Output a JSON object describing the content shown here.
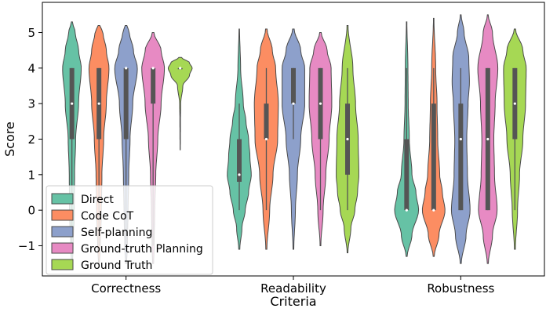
{
  "chart_data": {
    "type": "violin",
    "xlabel": "Criteria",
    "ylabel": "Score",
    "ylim": [
      -1.85,
      5.85
    ],
    "yticks": [
      -1,
      0,
      1,
      2,
      3,
      4,
      5
    ],
    "ytick_labels": [
      "−1",
      "0",
      "1",
      "2",
      "3",
      "4",
      "5"
    ],
    "grid": false,
    "legend_position": "lower-left",
    "categories": [
      "Correctness",
      "Readability",
      "Robustness"
    ],
    "series": [
      {
        "name": "Direct",
        "color": "#66c2a5"
      },
      {
        "name": "Code CoT",
        "color": "#fc8d62"
      },
      {
        "name": "Self-planning",
        "color": "#8da0cb"
      },
      {
        "name": "Ground-truth Planning",
        "color": "#e78ac3"
      },
      {
        "name": "Ground Truth",
        "color": "#a6d854"
      }
    ],
    "violins": [
      [
        {
          "range": [
            -1.5,
            5.3
          ],
          "q1": 2,
          "median": 3,
          "q3": 4,
          "wlo": -1,
          "whi": 4,
          "profile": [
            [
              -1.5,
              0.04
            ],
            [
              -1,
              0.1
            ],
            [
              0,
              0.18
            ],
            [
              1,
              0.2
            ],
            [
              2,
              0.28
            ],
            [
              3,
              0.5
            ],
            [
              4,
              0.7
            ],
            [
              4.5,
              0.5
            ],
            [
              5,
              0.25
            ],
            [
              5.3,
              0.04
            ]
          ]
        },
        {
          "range": [
            -1.5,
            5.2
          ],
          "q1": 2,
          "median": 3,
          "q3": 4,
          "wlo": -1,
          "whi": 4,
          "profile": [
            [
              -1.5,
              0.04
            ],
            [
              -1,
              0.1
            ],
            [
              0,
              0.18
            ],
            [
              1,
              0.22
            ],
            [
              2,
              0.35
            ],
            [
              3,
              0.55
            ],
            [
              4,
              0.75
            ],
            [
              4.5,
              0.55
            ],
            [
              5,
              0.3
            ],
            [
              5.2,
              0.06
            ]
          ]
        },
        {
          "range": [
            -1.5,
            5.2
          ],
          "q1": 2,
          "median": 4,
          "q3": 4,
          "wlo": -1,
          "whi": 4,
          "profile": [
            [
              -1.5,
              0.04
            ],
            [
              -1,
              0.1
            ],
            [
              0,
              0.15
            ],
            [
              1,
              0.2
            ],
            [
              2,
              0.3
            ],
            [
              3,
              0.5
            ],
            [
              4,
              0.85
            ],
            [
              4.5,
              0.55
            ],
            [
              5,
              0.25
            ],
            [
              5.2,
              0.06
            ]
          ]
        },
        {
          "range": [
            -1.5,
            5.0
          ],
          "q1": 3,
          "median": 4,
          "q3": 4,
          "wlo": -1,
          "whi": 4,
          "profile": [
            [
              -1.5,
              0.04
            ],
            [
              -1,
              0.08
            ],
            [
              0,
              0.12
            ],
            [
              1,
              0.2
            ],
            [
              2,
              0.35
            ],
            [
              3,
              0.6
            ],
            [
              4,
              0.85
            ],
            [
              4.5,
              0.6
            ],
            [
              5,
              0.06
            ]
          ]
        },
        {
          "range": [
            1.7,
            4.3
          ],
          "q1": 4,
          "median": 4,
          "q3": 4,
          "wlo": 4,
          "whi": 4,
          "profile": [
            [
              1.7,
              0.01
            ],
            [
              2.5,
              0.02
            ],
            [
              3,
              0.04
            ],
            [
              3.5,
              0.2
            ],
            [
              3.8,
              0.7
            ],
            [
              4,
              0.9
            ],
            [
              4.15,
              0.7
            ],
            [
              4.3,
              0.1
            ]
          ]
        }
      ],
      [
        {
          "range": [
            -1.1,
            5.1
          ],
          "q1": 0.8,
          "median": 1,
          "q3": 2,
          "wlo": 0,
          "whi": 3,
          "profile": [
            [
              -1.1,
              0.04
            ],
            [
              -0.5,
              0.2
            ],
            [
              0,
              0.45
            ],
            [
              0.5,
              0.7
            ],
            [
              1,
              0.9
            ],
            [
              1.5,
              0.8
            ],
            [
              2,
              0.7
            ],
            [
              2.5,
              0.5
            ],
            [
              3,
              0.3
            ],
            [
              4,
              0.1
            ],
            [
              5.1,
              0.02
            ]
          ]
        },
        {
          "range": [
            -1.1,
            5.1
          ],
          "q1": 2,
          "median": 2,
          "q3": 3,
          "wlo": 0,
          "whi": 4,
          "profile": [
            [
              -1.1,
              0.04
            ],
            [
              0,
              0.25
            ],
            [
              1,
              0.5
            ],
            [
              2,
              0.85
            ],
            [
              3,
              0.9
            ],
            [
              4,
              0.7
            ],
            [
              4.5,
              0.45
            ],
            [
              5.1,
              0.06
            ]
          ]
        },
        {
          "range": [
            -1.1,
            5.1
          ],
          "q1": 3,
          "median": 3,
          "q3": 4,
          "wlo": 2,
          "whi": 4,
          "profile": [
            [
              -1.1,
              0.03
            ],
            [
              0,
              0.15
            ],
            [
              1,
              0.3
            ],
            [
              2,
              0.55
            ],
            [
              3,
              0.85
            ],
            [
              4,
              0.85
            ],
            [
              4.5,
              0.55
            ],
            [
              5.1,
              0.06
            ]
          ]
        },
        {
          "range": [
            -1.0,
            5.0
          ],
          "q1": 2,
          "median": 3,
          "q3": 4,
          "wlo": 0,
          "whi": 4,
          "profile": [
            [
              -1,
              0.03
            ],
            [
              0,
              0.2
            ],
            [
              1,
              0.4
            ],
            [
              2,
              0.65
            ],
            [
              3,
              0.85
            ],
            [
              4,
              0.8
            ],
            [
              4.5,
              0.5
            ],
            [
              5,
              0.06
            ]
          ]
        },
        {
          "range": [
            -1.2,
            5.2
          ],
          "q1": 1,
          "median": 2,
          "q3": 3,
          "wlo": 0,
          "whi": 4,
          "profile": [
            [
              -1.2,
              0.03
            ],
            [
              -0.5,
              0.25
            ],
            [
              0,
              0.55
            ],
            [
              0.5,
              0.75
            ],
            [
              1,
              0.85
            ],
            [
              2,
              0.8
            ],
            [
              3,
              0.6
            ],
            [
              4,
              0.4
            ],
            [
              5.2,
              0.04
            ]
          ]
        }
      ],
      [
        {
          "range": [
            -1.3,
            5.3
          ],
          "q1": 0,
          "median": 0,
          "q3": 2,
          "wlo": 0,
          "whi": 4,
          "profile": [
            [
              -1.3,
              0.04
            ],
            [
              -0.7,
              0.4
            ],
            [
              0,
              0.9
            ],
            [
              0.5,
              0.7
            ],
            [
              1,
              0.4
            ],
            [
              2,
              0.2
            ],
            [
              3,
              0.12
            ],
            [
              4,
              0.1
            ],
            [
              5.3,
              0.02
            ]
          ]
        },
        {
          "range": [
            -1.3,
            5.4
          ],
          "q1": 0,
          "median": 0,
          "q3": 3,
          "wlo": 0,
          "whi": 4,
          "profile": [
            [
              -1.3,
              0.04
            ],
            [
              -0.7,
              0.4
            ],
            [
              0,
              0.85
            ],
            [
              0.5,
              0.65
            ],
            [
              1,
              0.45
            ],
            [
              2,
              0.3
            ],
            [
              3,
              0.25
            ],
            [
              4,
              0.15
            ],
            [
              5.4,
              0.02
            ]
          ]
        },
        {
          "range": [
            -1.5,
            5.5
          ],
          "q1": 0,
          "median": 2,
          "q3": 3,
          "wlo": 0,
          "whi": 4,
          "profile": [
            [
              -1.5,
              0.04
            ],
            [
              -0.7,
              0.4
            ],
            [
              0,
              0.7
            ],
            [
              1,
              0.5
            ],
            [
              2,
              0.45
            ],
            [
              3,
              0.55
            ],
            [
              3.6,
              0.65
            ],
            [
              4.3,
              0.6
            ],
            [
              5,
              0.25
            ],
            [
              5.5,
              0.03
            ]
          ]
        },
        {
          "range": [
            -1.5,
            5.5
          ],
          "q1": 0,
          "median": 2,
          "q3": 4,
          "wlo": 0,
          "whi": 4,
          "profile": [
            [
              -1.5,
              0.04
            ],
            [
              -0.7,
              0.35
            ],
            [
              0,
              0.7
            ],
            [
              1,
              0.5
            ],
            [
              2,
              0.45
            ],
            [
              3,
              0.55
            ],
            [
              4,
              0.75
            ],
            [
              5,
              0.35
            ],
            [
              5.5,
              0.03
            ]
          ]
        },
        {
          "range": [
            -1.1,
            5.1
          ],
          "q1": 2,
          "median": 3,
          "q3": 4,
          "wlo": 0,
          "whi": 4,
          "profile": [
            [
              -1.1,
              0.04
            ],
            [
              0,
              0.2
            ],
            [
              1,
              0.35
            ],
            [
              2,
              0.6
            ],
            [
              3,
              0.8
            ],
            [
              4,
              0.85
            ],
            [
              4.5,
              0.6
            ],
            [
              5.1,
              0.05
            ]
          ]
        }
      ]
    ]
  }
}
